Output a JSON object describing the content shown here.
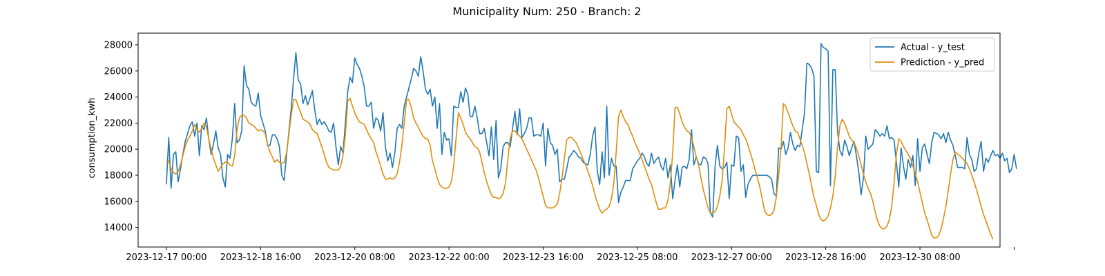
{
  "chart_data": {
    "type": "line",
    "title": "Municipality Num: 250 - Branch: 2",
    "xlabel": "",
    "ylabel": "consumption_kwh",
    "x_start": "2023-12-17 00:00",
    "x_step_hours": 1,
    "xlim_hours": [
      -12,
      354
    ],
    "ylim": [
      12500,
      28900
    ],
    "y_ticks": [
      14000,
      16000,
      18000,
      20000,
      22000,
      24000,
      26000,
      28000
    ],
    "x_tick_labels": [
      "2023-12-17 00:00",
      "2023-12-18 16:00",
      "2023-12-20 08:00",
      "2023-12-22 00:00",
      "2023-12-23 16:00",
      "2023-12-25 08:00",
      "2023-12-27 00:00",
      "2023-12-28 16:00",
      "2023-12-30 08:00",
      ""
    ],
    "x_tick_hours": [
      0,
      40,
      80,
      120,
      160,
      200,
      240,
      280,
      320,
      360
    ],
    "grid": false,
    "legend_position": "top-right",
    "series": [
      {
        "name": "Actual - y_test",
        "color": "#1f77b4",
        "y": [
          17300,
          20900,
          17000,
          19600,
          19800,
          17500,
          18500,
          19600,
          20600,
          21200,
          21800,
          22100,
          21000,
          22000,
          19500,
          21800,
          21500,
          22400,
          20800,
          19600,
          20400,
          21400,
          20100,
          19600,
          17800,
          17100,
          19600,
          19300,
          20800,
          23500,
          20500,
          20700,
          21400,
          26400,
          24900,
          24600,
          23600,
          23400,
          23300,
          24300,
          22600,
          22000,
          21400,
          20300,
          20300,
          21100,
          21100,
          20800,
          20200,
          18000,
          17600,
          19500,
          21300,
          23100,
          25400,
          27400,
          25300,
          25000,
          23500,
          24100,
          23400,
          23900,
          24500,
          23000,
          21900,
          22300,
          21900,
          22100,
          21800,
          21400,
          21300,
          22000,
          20200,
          18800,
          20200,
          19700,
          22000,
          24400,
          25500,
          25100,
          27000,
          26500,
          26200,
          25600,
          24800,
          23300,
          23300,
          23600,
          21600,
          22400,
          22200,
          21400,
          22800,
          20200,
          19100,
          19700,
          18600,
          19700,
          21600,
          21900,
          21600,
          23300,
          24000,
          24700,
          25400,
          26200,
          26000,
          25600,
          27100,
          26000,
          24600,
          24200,
          24600,
          23300,
          24000,
          21600,
          23500,
          19600,
          21300,
          20700,
          20800,
          19500,
          23300,
          23200,
          23200,
          24400,
          23600,
          24700,
          24200,
          22500,
          22500,
          23300,
          22400,
          21200,
          21200,
          21600,
          20500,
          19500,
          21700,
          19200,
          22200,
          17800,
          18500,
          20200,
          20500,
          20500,
          20200,
          21600,
          22900,
          21100,
          23100,
          20900,
          21200,
          21600,
          22400,
          22400,
          21000,
          21100,
          21100,
          21000,
          22000,
          18700,
          21600,
          20500,
          20300,
          19600,
          20000,
          17500,
          17700,
          17700,
          18500,
          19400,
          19600,
          19900,
          19700,
          19400,
          19300,
          19000,
          18900,
          18800,
          19600,
          21000,
          21700,
          18300,
          17300,
          19800,
          17800,
          23300,
          18000,
          19300,
          18700,
          18700,
          15900,
          16700,
          17100,
          17600,
          17600,
          17600,
          18500,
          18800,
          19100,
          19300,
          19700,
          19400,
          18900,
          18700,
          19700,
          18900,
          19200,
          19400,
          18700,
          18400,
          19300,
          17800,
          18800,
          16200,
          17600,
          18800,
          17100,
          18600,
          18700,
          18500,
          19200,
          21500,
          18800,
          19400,
          18900,
          18800,
          19400,
          19300,
          18900,
          15100,
          14800,
          18700,
          20300,
          18700,
          18500,
          18600,
          19000,
          16200,
          18800,
          18700,
          21000,
          20900,
          18300,
          18800,
          16300,
          17300,
          17700,
          18000,
          18000,
          18000,
          18000,
          18000,
          18000,
          18000,
          17900,
          17700,
          16600,
          16400,
          20100,
          20000,
          20600,
          19600,
          20100,
          21300,
          20400,
          19900,
          20300,
          20200,
          21500,
          22800,
          26600,
          26500,
          26200,
          25600,
          18300,
          18200,
          28100,
          27800,
          27700,
          27500,
          17200,
          26100,
          26100,
          21400,
          19900,
          19500,
          20700,
          20200,
          19500,
          20100,
          20600,
          19500,
          18300,
          16500,
          17800,
          21000,
          20000,
          20200,
          20400,
          21500,
          21300,
          21000,
          21200,
          21000,
          21800,
          20800,
          20900,
          20700,
          19000,
          17100,
          20100,
          18700,
          17700,
          19200,
          18600,
          19500,
          17200,
          20800,
          18300,
          20100,
          20400,
          19600,
          18900,
          20500,
          21300,
          21200,
          21100,
          20800,
          21200,
          20500,
          21300,
          20700,
          20300,
          19500,
          18600,
          18600,
          18600,
          18500,
          20900,
          19600,
          19200,
          18300,
          18500,
          19700,
          20600,
          18300,
          19300,
          19000,
          19500,
          19900,
          19500,
          19600,
          19300,
          19700,
          19100,
          19300,
          18200,
          18500,
          19600,
          18500
        ]
      },
      {
        "name": "Prediction - y_pred",
        "color": "#e08c0b",
        "y": [
          19000,
          19100,
          18500,
          18200,
          18100,
          18300,
          18800,
          19500,
          20200,
          20700,
          21000,
          21400,
          21900,
          21500,
          21300,
          21600,
          22000,
          21700,
          20800,
          20000,
          19300,
          18800,
          18300,
          18600,
          18900,
          19000,
          19000,
          18800,
          18700,
          19500,
          21500,
          22400,
          22600,
          22600,
          22400,
          22000,
          21900,
          21800,
          21600,
          21400,
          21500,
          21400,
          21200,
          20300,
          19800,
          19400,
          19000,
          19200,
          19000,
          18900,
          19000,
          19700,
          21100,
          22600,
          23800,
          23800,
          23300,
          22800,
          22300,
          22200,
          22100,
          21900,
          21500,
          21300,
          21200,
          20700,
          20200,
          19600,
          19000,
          18600,
          18500,
          18400,
          18400,
          18400,
          18700,
          19500,
          21100,
          23700,
          23900,
          23300,
          22800,
          22400,
          22100,
          22000,
          21900,
          21500,
          21100,
          20800,
          20500,
          19800,
          19300,
          18700,
          18100,
          17700,
          17700,
          17800,
          17700,
          17800,
          18100,
          19000,
          20300,
          22000,
          23800,
          23800,
          23200,
          22400,
          22000,
          21700,
          21300,
          21000,
          20800,
          20800,
          20300,
          19100,
          18500,
          17800,
          17300,
          17100,
          17000,
          17000,
          17100,
          17500,
          18700,
          20800,
          22800,
          22400,
          21900,
          21300,
          21000,
          20800,
          20500,
          20200,
          20100,
          19800,
          19000,
          18200,
          17500,
          17000,
          16500,
          16300,
          16300,
          16200,
          16300,
          16600,
          17400,
          19200,
          20800,
          21400,
          21400,
          21200,
          21000,
          20800,
          20400,
          20000,
          19600,
          19200,
          18800,
          18400,
          17800,
          17100,
          16400,
          15700,
          15500,
          15500,
          15500,
          15600,
          15800,
          16600,
          17800,
          19300,
          20700,
          20900,
          20900,
          20700,
          20500,
          20100,
          19700,
          19200,
          18800,
          18300,
          17800,
          17200,
          16500,
          15900,
          15400,
          15100,
          15300,
          15400,
          15600,
          16200,
          17400,
          19800,
          22500,
          23000,
          22500,
          22100,
          21900,
          21400,
          21000,
          20500,
          20100,
          19700,
          19200,
          18700,
          18200,
          17700,
          17300,
          16600,
          15900,
          15400,
          15400,
          15500,
          15500,
          16100,
          17400,
          19700,
          23200,
          23200,
          22700,
          22100,
          21700,
          21400,
          21300,
          20900,
          20200,
          19400,
          18800,
          17800,
          16900,
          16200,
          15500,
          15100,
          15100,
          15200,
          15600,
          16400,
          17600,
          20100,
          23100,
          23300,
          22700,
          22100,
          21900,
          21700,
          21500,
          21100,
          20800,
          20300,
          19700,
          19100,
          18400,
          17800,
          17100,
          16200,
          15300,
          15000,
          14900,
          15000,
          15300,
          16300,
          18000,
          20100,
          23500,
          23300,
          22800,
          22300,
          21800,
          21400,
          21300,
          20800,
          20300,
          19700,
          18900,
          18100,
          17200,
          16300,
          15700,
          15000,
          14600,
          14500,
          14600,
          14900,
          15500,
          16400,
          17900,
          20100,
          21800,
          22300,
          22000,
          21500,
          21000,
          20700,
          20500,
          20100,
          19500,
          18800,
          18100,
          17500,
          17000,
          16600,
          16000,
          15200,
          14500,
          14100,
          13900,
          13900,
          14100,
          14600,
          15600,
          17400,
          19600,
          20800,
          20600,
          20200,
          19900,
          19600,
          19300,
          18700,
          18100,
          17500,
          16700,
          15900,
          15100,
          14600,
          14000,
          13400,
          13200,
          13200,
          13400,
          13900,
          14700,
          15600,
          16800,
          18100,
          19200,
          19800,
          19600,
          19500,
          19300,
          19100,
          18900,
          18500,
          18000,
          17500,
          16900,
          16300,
          15600,
          15000,
          14500,
          14000,
          13500,
          13100
        ]
      }
    ]
  }
}
